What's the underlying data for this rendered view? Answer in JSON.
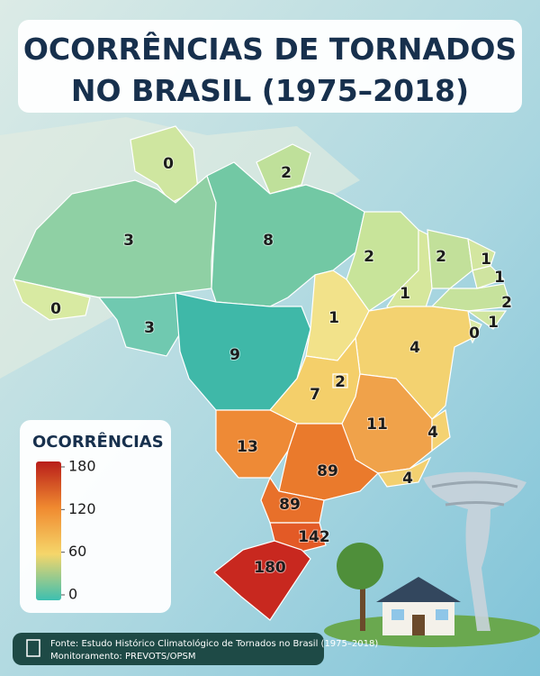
{
  "title": [
    "OCORRÊNCIAS DE TORNADOS",
    "NO BRASIL (1975–2018)"
  ],
  "regions": [
    {
      "value": 0,
      "color": "#cfe6a0"
    },
    {
      "value": 2,
      "color": "#bfe09a"
    },
    {
      "value": 3,
      "color": "#8fd0a4"
    },
    {
      "value": 8,
      "color": "#72c8a4"
    },
    {
      "value": 2,
      "color": "#c8e49a"
    },
    {
      "value": 1,
      "color": "#d6e79c"
    },
    {
      "value": 2,
      "color": "#c2e09a"
    },
    {
      "value": 1,
      "color": "#d3e6a0"
    },
    {
      "value": 1,
      "color": "#cfe4a0"
    },
    {
      "value": 2,
      "color": "#c6e29c"
    },
    {
      "value": 1,
      "color": "#d0e5a0"
    },
    {
      "value": 0,
      "color": "#dae9a6"
    },
    {
      "value": 0,
      "color": "#d8eaa2"
    },
    {
      "value": 3,
      "color": "#70c9b0"
    },
    {
      "value": 9,
      "color": "#3fb8a8"
    },
    {
      "value": 1,
      "color": "#f2e28a"
    },
    {
      "value": 4,
      "color": "#f3d270"
    },
    {
      "value": 7,
      "color": "#f4cf6a"
    },
    {
      "value": 2,
      "color": "#f4cf6a"
    },
    {
      "value": 11,
      "color": "#f0a24a"
    },
    {
      "value": 4,
      "color": "#f4d272"
    },
    {
      "value": 4,
      "color": "#f3d070"
    },
    {
      "value": 13,
      "color": "#ee8a36"
    },
    {
      "value": 89,
      "color": "#ea7a2c"
    },
    {
      "value": 89,
      "color": "#e8702a"
    },
    {
      "value": 142,
      "color": "#e35a26"
    },
    {
      "value": 180,
      "color": "#c8281f"
    }
  ],
  "legend": {
    "title": "OCORRÊNCIAS",
    "ticks": [
      180,
      120,
      60,
      0
    ],
    "colors": [
      "#b81e1a",
      "#f08a30",
      "#f5d66a",
      "#3dbfb0"
    ]
  },
  "source": [
    "Fonte: Estudo Histórico Climatológico de Tornados no Brasil (1975–2018)",
    "Monitoramento: PREVOTS/OPSM"
  ]
}
